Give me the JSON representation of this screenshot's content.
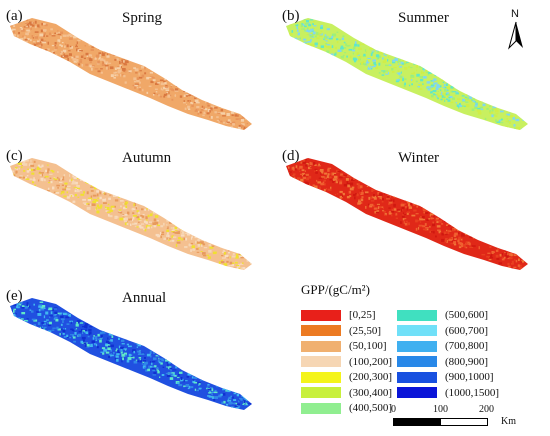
{
  "panels": [
    {
      "id": "a",
      "label": "(a)",
      "title": "Spring",
      "palette": [
        "#f0a868",
        "#e8945a",
        "#f4c090",
        "#d97840",
        "#f6d0a8"
      ]
    },
    {
      "id": "b",
      "label": "(b)",
      "title": "Summer",
      "palette": [
        "#c8f060",
        "#d0ee48",
        "#60e8c8",
        "#80d8f0",
        "#a0f078"
      ]
    },
    {
      "id": "c",
      "label": "(c)",
      "title": "Autumn",
      "palette": [
        "#f4c090",
        "#f6d6b4",
        "#e89a5c",
        "#f0e030",
        "#f8dcc0"
      ]
    },
    {
      "id": "d",
      "label": "(d)",
      "title": "Winter",
      "palette": [
        "#e02818",
        "#e84020",
        "#f06030",
        "#d01810",
        "#f07838"
      ]
    },
    {
      "id": "e",
      "label": "(e)",
      "title": "Annual",
      "palette": [
        "#2050e0",
        "#3088e8",
        "#40b8f0",
        "#1030d0",
        "#60e8c8"
      ]
    }
  ],
  "north_label": "N",
  "legend": {
    "title": "GPP/(gC/m²)",
    "items": [
      {
        "label": "[0,25]",
        "color": "#e8201a"
      },
      {
        "label": "(25,50]",
        "color": "#ec7a22"
      },
      {
        "label": "(50,100]",
        "color": "#f0b070"
      },
      {
        "label": "(100,200]",
        "color": "#f6d6b4"
      },
      {
        "label": "(200,300]",
        "color": "#f4f41a"
      },
      {
        "label": "(300,400]",
        "color": "#c8f03c"
      },
      {
        "label": "(400,500]",
        "color": "#90ee90"
      },
      {
        "label": "(500,600]",
        "color": "#40e0c0"
      },
      {
        "label": "(600,700]",
        "color": "#70e0f8"
      },
      {
        "label": "(700,800]",
        "color": "#40b0f0"
      },
      {
        "label": "(800,900]",
        "color": "#2888e8"
      },
      {
        "label": "(900,1000]",
        "color": "#1850e0"
      },
      {
        "label": "(1000,1500]",
        "color": "#0a14d8"
      }
    ]
  },
  "scale": {
    "ticks": [
      "0",
      "100",
      "200"
    ],
    "unit": "Km"
  }
}
